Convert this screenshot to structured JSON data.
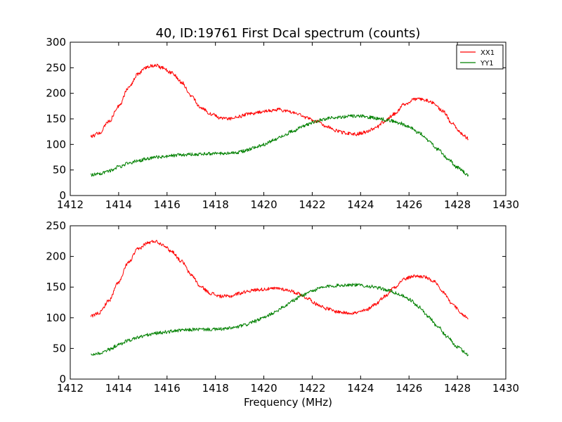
{
  "figure": {
    "title": "40, ID:19761 First Dcal spectrum (counts)",
    "xlabel": "Frequency (MHz)"
  },
  "colors": {
    "XX1": "#ff0000",
    "YY1": "#008000"
  },
  "chart_data": [
    {
      "type": "line",
      "title": "40, ID:19761 First Dcal spectrum (counts)",
      "xlabel": "",
      "ylabel": "",
      "xlim": [
        1412,
        1430
      ],
      "ylim": [
        0,
        300
      ],
      "xticks": [
        1412,
        1414,
        1416,
        1418,
        1420,
        1422,
        1424,
        1426,
        1428,
        1430
      ],
      "yticks": [
        0,
        50,
        100,
        150,
        200,
        250,
        300
      ],
      "grid": false,
      "legend": "top-right",
      "series": [
        {
          "name": "XX1",
          "color": "#ff0000",
          "x": [
            1412.85,
            1413.2,
            1413.6,
            1414.0,
            1414.4,
            1414.8,
            1415.2,
            1415.5,
            1415.8,
            1416.2,
            1416.6,
            1417.0,
            1417.4,
            1417.8,
            1418.2,
            1418.6,
            1419.0,
            1419.4,
            1419.8,
            1420.2,
            1420.6,
            1421.0,
            1421.4,
            1421.8,
            1422.2,
            1422.6,
            1423.0,
            1423.4,
            1423.8,
            1424.2,
            1424.6,
            1425.0,
            1425.4,
            1425.8,
            1426.2,
            1426.6,
            1427.0,
            1427.4,
            1427.8,
            1428.2,
            1428.45
          ],
          "values": [
            115,
            122,
            145,
            175,
            210,
            238,
            252,
            255,
            250,
            240,
            222,
            195,
            172,
            160,
            152,
            150,
            155,
            160,
            163,
            166,
            168,
            165,
            160,
            152,
            145,
            135,
            127,
            122,
            120,
            124,
            132,
            145,
            160,
            178,
            188,
            188,
            182,
            165,
            140,
            120,
            112
          ]
        },
        {
          "name": "YY1",
          "color": "#008000",
          "x": [
            1412.85,
            1413.2,
            1413.6,
            1414.0,
            1414.4,
            1414.8,
            1415.2,
            1415.6,
            1416.0,
            1416.4,
            1416.8,
            1417.2,
            1417.6,
            1418.0,
            1418.4,
            1418.8,
            1419.2,
            1419.6,
            1420.0,
            1420.4,
            1420.8,
            1421.2,
            1421.6,
            1422.0,
            1422.4,
            1422.8,
            1423.2,
            1423.6,
            1424.0,
            1424.4,
            1424.8,
            1425.2,
            1425.6,
            1426.0,
            1426.4,
            1426.8,
            1427.2,
            1427.6,
            1428.0,
            1428.45
          ],
          "values": [
            40,
            43,
            48,
            56,
            63,
            68,
            72,
            75,
            77,
            79,
            80,
            81,
            82,
            82,
            82,
            84,
            87,
            93,
            100,
            108,
            117,
            126,
            135,
            143,
            148,
            152,
            154,
            155,
            155,
            153,
            150,
            147,
            142,
            134,
            123,
            108,
            90,
            72,
            55,
            40
          ]
        }
      ]
    },
    {
      "type": "line",
      "title": "",
      "xlabel": "Frequency (MHz)",
      "ylabel": "",
      "xlim": [
        1412,
        1430
      ],
      "ylim": [
        0,
        250
      ],
      "xticks": [
        1412,
        1414,
        1416,
        1418,
        1420,
        1422,
        1424,
        1426,
        1428,
        1430
      ],
      "yticks": [
        0,
        50,
        100,
        150,
        200,
        250
      ],
      "grid": false,
      "series": [
        {
          "color": "#ff0000",
          "x": [
            1412.85,
            1413.2,
            1413.6,
            1414.0,
            1414.4,
            1414.8,
            1415.2,
            1415.5,
            1415.8,
            1416.2,
            1416.6,
            1417.0,
            1417.4,
            1417.8,
            1418.2,
            1418.6,
            1419.0,
            1419.4,
            1419.8,
            1420.2,
            1420.6,
            1421.0,
            1421.4,
            1421.8,
            1422.2,
            1422.6,
            1423.0,
            1423.4,
            1423.8,
            1424.2,
            1424.6,
            1425.0,
            1425.4,
            1425.8,
            1426.2,
            1426.6,
            1427.0,
            1427.4,
            1427.8,
            1428.2,
            1428.45
          ],
          "values": [
            102,
            108,
            128,
            158,
            190,
            212,
            222,
            225,
            220,
            208,
            192,
            170,
            150,
            140,
            135,
            135,
            140,
            144,
            146,
            147,
            148,
            145,
            140,
            132,
            122,
            115,
            110,
            108,
            108,
            112,
            122,
            135,
            150,
            163,
            168,
            167,
            160,
            142,
            122,
            105,
            99
          ]
        },
        {
          "color": "#008000",
          "x": [
            1412.85,
            1413.2,
            1413.6,
            1414.0,
            1414.4,
            1414.8,
            1415.2,
            1415.6,
            1416.0,
            1416.4,
            1416.8,
            1417.2,
            1417.6,
            1418.0,
            1418.4,
            1418.8,
            1419.2,
            1419.6,
            1420.0,
            1420.4,
            1420.8,
            1421.2,
            1421.6,
            1422.0,
            1422.4,
            1422.8,
            1423.2,
            1423.6,
            1424.0,
            1424.4,
            1424.8,
            1425.2,
            1425.6,
            1426.0,
            1426.4,
            1426.8,
            1427.2,
            1427.6,
            1428.0,
            1428.45
          ],
          "values": [
            40,
            42,
            48,
            56,
            63,
            68,
            72,
            75,
            77,
            79,
            80,
            81,
            81,
            81,
            82,
            84,
            88,
            94,
            100,
            108,
            118,
            128,
            137,
            144,
            149,
            152,
            153,
            154,
            153,
            151,
            148,
            144,
            138,
            130,
            118,
            102,
            85,
            68,
            52,
            40
          ]
        }
      ]
    }
  ]
}
